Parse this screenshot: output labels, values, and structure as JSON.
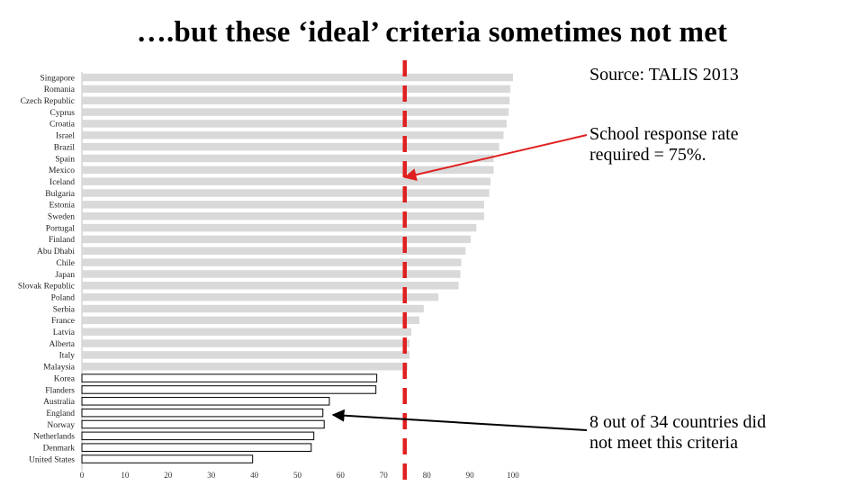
{
  "title": "….but these ‘ideal’ criteria sometimes not met",
  "notes": {
    "source": "Source: TALIS 2013",
    "threshold_line1": "School response rate",
    "threshold_line2": "required = 75%.",
    "count_line1": "8 out of 34 countries did",
    "count_line2": "not meet this criteria"
  },
  "colors": {
    "bar_met": "#d9d9d9",
    "bar_not_met": "#ffffff",
    "bar_not_met_stroke": "#000000",
    "threshold_line": "#e02020",
    "arrow": "#e02020"
  },
  "chart_data": {
    "type": "bar",
    "orientation": "horizontal",
    "categories": [
      "Singapore",
      "Romania",
      "Czech Republic",
      "Cyprus",
      "Croatia",
      "Israel",
      "Brazil",
      "Spain",
      "Mexico",
      "Iceland",
      "Bulgaria",
      "Estonia",
      "Sweden",
      "Portugal",
      "Finland",
      "Abu Dhabi",
      "Chile",
      "Japan",
      "Slovak Republic",
      "Poland",
      "Serbia",
      "France",
      "Latvia",
      "Alberta",
      "Italy",
      "Malaysia",
      "Korea",
      "Flanders",
      "Australia",
      "England",
      "Norway",
      "Netherlands",
      "Denmark",
      "United States"
    ],
    "values": [
      100,
      99.4,
      99.2,
      99,
      98.5,
      97.8,
      96.8,
      95.5,
      95.5,
      94.8,
      94.5,
      93.3,
      93.3,
      91.5,
      90.2,
      89,
      88,
      87.8,
      87.4,
      82.7,
      79.3,
      78.3,
      76.4,
      76,
      76,
      75.6,
      68.4,
      68.2,
      57.4,
      55.9,
      56.2,
      53.8,
      53.2,
      39.6
    ],
    "threshold": 75,
    "xlim": [
      0,
      100
    ],
    "xticks": [
      0,
      10,
      20,
      30,
      40,
      50,
      60,
      70,
      80,
      90,
      100
    ]
  }
}
